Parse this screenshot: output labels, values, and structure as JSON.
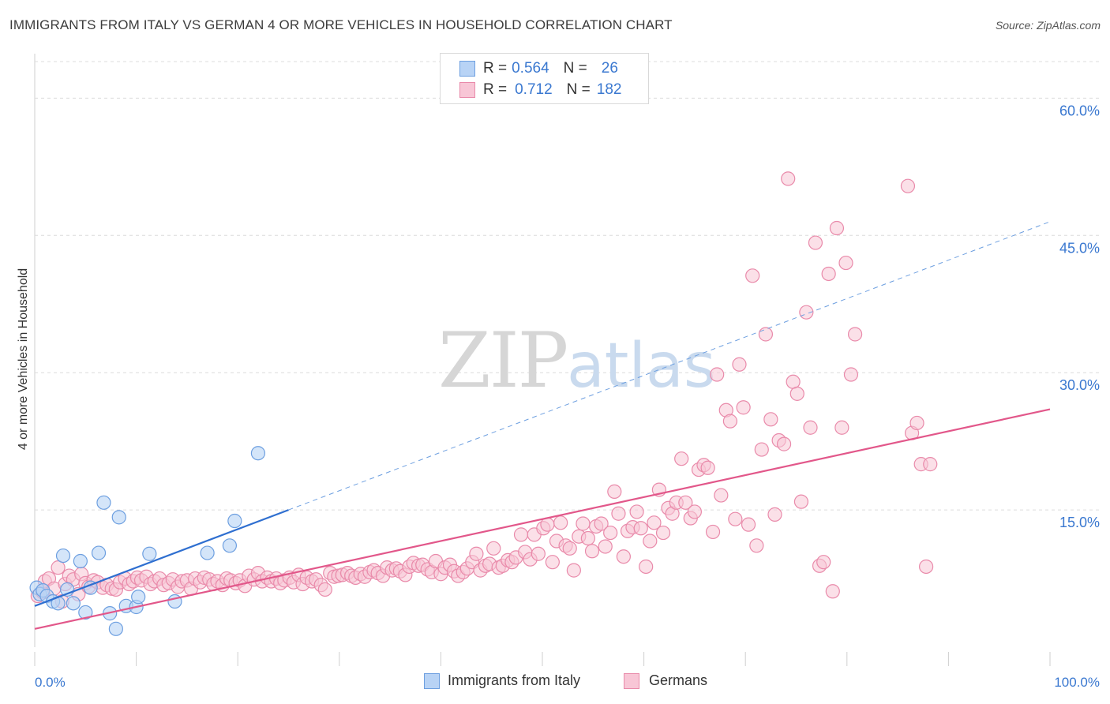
{
  "title": "IMMIGRANTS FROM ITALY VS GERMAN 4 OR MORE VEHICLES IN HOUSEHOLD CORRELATION CHART",
  "source": "Source: ZipAtlas.com",
  "watermark": {
    "zip": "ZIP",
    "atlas": "atlas"
  },
  "colors": {
    "blue_fill": "#b8d3f5",
    "blue_stroke": "#6d9fe0",
    "blue_line": "#2f6fd0",
    "pink_fill": "#f8c6d6",
    "pink_stroke": "#e98aaa",
    "pink_line": "#e2578a",
    "value_text": "#3a78d0",
    "grid": "#dcdcdc"
  },
  "legend": {
    "rows": [
      {
        "r_label": "R =",
        "r_value": "0.564",
        "n_label": "N =",
        "n_value": "26"
      },
      {
        "r_label": "R =",
        "r_value": "0.712",
        "n_label": "N =",
        "n_value": "182"
      }
    ]
  },
  "bottom_legend": [
    "Immigrants from Italy",
    "Germans"
  ],
  "chart_data": {
    "type": "scatter",
    "title": "IMMIGRANTS FROM ITALY VS GERMAN 4 OR MORE VEHICLES IN HOUSEHOLD CORRELATION CHART",
    "xlabel": "",
    "ylabel": "4 or more Vehicles in Household",
    "xlim": [
      0,
      100
    ],
    "ylim": [
      0,
      64
    ],
    "x_tick_labels": [
      "0.0%",
      "100.0%"
    ],
    "y_ticks": [
      15,
      30,
      45,
      60
    ],
    "y_tick_labels": [
      "15.0%",
      "30.0%",
      "45.0%",
      "60.0%"
    ],
    "grid": true,
    "legend_position": "top-center",
    "series": [
      {
        "name": "Immigrants from Italy",
        "stats": {
          "R": 0.564,
          "N": 26
        },
        "trendline": {
          "x0": 0,
          "y0": 4.5,
          "x1": 25,
          "y1": 15,
          "dashed_to": {
            "x": 100,
            "y": 46.5
          }
        },
        "points": [
          [
            0.2,
            6.5
          ],
          [
            0.5,
            5.8
          ],
          [
            0.8,
            6.2
          ],
          [
            1.2,
            5.6
          ],
          [
            1.8,
            5.0
          ],
          [
            2.3,
            4.8
          ],
          [
            2.8,
            10.0
          ],
          [
            3.2,
            6.3
          ],
          [
            3.8,
            4.8
          ],
          [
            4.5,
            9.4
          ],
          [
            5.0,
            3.8
          ],
          [
            5.5,
            6.5
          ],
          [
            6.3,
            10.3
          ],
          [
            6.8,
            15.8
          ],
          [
            7.4,
            3.7
          ],
          [
            8.0,
            2.0
          ],
          [
            8.3,
            14.2
          ],
          [
            9.0,
            4.5
          ],
          [
            10.0,
            4.4
          ],
          [
            10.2,
            5.5
          ],
          [
            11.3,
            10.2
          ],
          [
            13.8,
            5.0
          ],
          [
            17.0,
            10.3
          ],
          [
            19.2,
            11.1
          ],
          [
            19.7,
            13.8
          ],
          [
            22.0,
            21.2
          ]
        ]
      },
      {
        "name": "Germans",
        "stats": {
          "R": 0.712,
          "N": 182
        },
        "trendline": {
          "x0": 0,
          "y0": 2.0,
          "x1": 100,
          "y1": 26.0
        },
        "points": [
          [
            0.3,
            5.6
          ],
          [
            0.8,
            6.0
          ],
          [
            1.0,
            7.2
          ],
          [
            1.4,
            7.5
          ],
          [
            1.9,
            6.4
          ],
          [
            2.3,
            8.7
          ],
          [
            2.7,
            5.0
          ],
          [
            3.0,
            6.9
          ],
          [
            3.4,
            7.8
          ],
          [
            3.8,
            7.4
          ],
          [
            4.3,
            5.8
          ],
          [
            4.6,
            8.0
          ],
          [
            5.0,
            7.0
          ],
          [
            5.3,
            6.6
          ],
          [
            5.8,
            7.3
          ],
          [
            6.2,
            7.1
          ],
          [
            6.7,
            6.5
          ],
          [
            7.1,
            6.8
          ],
          [
            7.6,
            6.4
          ],
          [
            8.0,
            6.3
          ],
          [
            8.4,
            7.1
          ],
          [
            8.9,
            7.5
          ],
          [
            9.3,
            6.9
          ],
          [
            9.7,
            7.2
          ],
          [
            10.1,
            7.6
          ],
          [
            10.5,
            7.3
          ],
          [
            11.0,
            7.7
          ],
          [
            11.4,
            6.9
          ],
          [
            11.8,
            7.2
          ],
          [
            12.3,
            7.5
          ],
          [
            12.7,
            6.8
          ],
          [
            13.2,
            7.0
          ],
          [
            13.6,
            7.4
          ],
          [
            14.1,
            6.6
          ],
          [
            14.5,
            7.2
          ],
          [
            15.0,
            7.3
          ],
          [
            15.4,
            6.4
          ],
          [
            15.8,
            7.5
          ],
          [
            16.3,
            7.1
          ],
          [
            16.7,
            7.6
          ],
          [
            17.2,
            7.4
          ],
          [
            17.6,
            6.9
          ],
          [
            18.0,
            7.2
          ],
          [
            18.5,
            6.8
          ],
          [
            18.9,
            7.5
          ],
          [
            19.3,
            7.3
          ],
          [
            19.8,
            7.0
          ],
          [
            20.2,
            7.3
          ],
          [
            20.7,
            6.7
          ],
          [
            21.1,
            7.8
          ],
          [
            21.6,
            7.4
          ],
          [
            22.0,
            8.1
          ],
          [
            22.4,
            7.2
          ],
          [
            22.9,
            7.6
          ],
          [
            23.3,
            7.2
          ],
          [
            23.8,
            7.5
          ],
          [
            24.2,
            7.0
          ],
          [
            24.6,
            7.3
          ],
          [
            25.1,
            7.6
          ],
          [
            25.5,
            7.1
          ],
          [
            26.0,
            7.9
          ],
          [
            26.4,
            6.9
          ],
          [
            26.8,
            7.6
          ],
          [
            27.3,
            7.2
          ],
          [
            27.7,
            7.4
          ],
          [
            28.2,
            6.8
          ],
          [
            28.6,
            6.3
          ],
          [
            29.1,
            8.1
          ],
          [
            29.5,
            7.7
          ],
          [
            29.9,
            7.8
          ],
          [
            30.3,
            7.9
          ],
          [
            30.8,
            8.1
          ],
          [
            31.2,
            7.8
          ],
          [
            31.6,
            7.6
          ],
          [
            32.1,
            8.0
          ],
          [
            32.5,
            7.7
          ],
          [
            33.0,
            8.2
          ],
          [
            33.4,
            8.4
          ],
          [
            33.8,
            8.1
          ],
          [
            34.3,
            7.8
          ],
          [
            34.7,
            8.7
          ],
          [
            35.2,
            8.4
          ],
          [
            35.6,
            8.6
          ],
          [
            36.0,
            8.3
          ],
          [
            36.5,
            7.9
          ],
          [
            36.9,
            8.8
          ],
          [
            37.3,
            9.2
          ],
          [
            37.8,
            8.9
          ],
          [
            38.2,
            9.0
          ],
          [
            38.7,
            8.5
          ],
          [
            39.1,
            8.2
          ],
          [
            39.5,
            9.4
          ],
          [
            40.0,
            8.0
          ],
          [
            40.4,
            8.7
          ],
          [
            40.9,
            9.0
          ],
          [
            41.3,
            8.3
          ],
          [
            41.7,
            7.8
          ],
          [
            42.2,
            8.2
          ],
          [
            42.6,
            8.6
          ],
          [
            43.1,
            9.3
          ],
          [
            43.5,
            10.2
          ],
          [
            43.9,
            8.4
          ],
          [
            44.4,
            8.9
          ],
          [
            44.8,
            9.1
          ],
          [
            45.2,
            10.8
          ],
          [
            45.7,
            8.7
          ],
          [
            46.1,
            8.9
          ],
          [
            46.6,
            9.5
          ],
          [
            47.0,
            9.3
          ],
          [
            47.4,
            9.8
          ],
          [
            47.9,
            12.3
          ],
          [
            48.3,
            10.4
          ],
          [
            48.8,
            9.6
          ],
          [
            49.2,
            12.3
          ],
          [
            49.6,
            10.2
          ],
          [
            50.1,
            13.0
          ],
          [
            50.5,
            13.4
          ],
          [
            51.0,
            9.3
          ],
          [
            51.4,
            11.6
          ],
          [
            51.8,
            13.6
          ],
          [
            52.3,
            11.1
          ],
          [
            52.7,
            10.8
          ],
          [
            53.1,
            8.4
          ],
          [
            53.6,
            12.1
          ],
          [
            54.0,
            13.5
          ],
          [
            54.5,
            11.9
          ],
          [
            54.9,
            10.5
          ],
          [
            55.3,
            13.2
          ],
          [
            55.8,
            13.5
          ],
          [
            56.2,
            11.0
          ],
          [
            56.7,
            12.5
          ],
          [
            57.1,
            17.0
          ],
          [
            57.5,
            14.6
          ],
          [
            58.0,
            9.9
          ],
          [
            58.4,
            12.7
          ],
          [
            58.9,
            13.1
          ],
          [
            59.3,
            14.8
          ],
          [
            59.7,
            13.0
          ],
          [
            60.2,
            8.8
          ],
          [
            60.6,
            11.6
          ],
          [
            61.0,
            13.6
          ],
          [
            61.5,
            17.2
          ],
          [
            61.9,
            12.5
          ],
          [
            62.4,
            15.2
          ],
          [
            62.8,
            14.6
          ],
          [
            63.2,
            15.8
          ],
          [
            63.7,
            20.6
          ],
          [
            64.1,
            15.8
          ],
          [
            64.6,
            14.1
          ],
          [
            65.0,
            14.8
          ],
          [
            65.4,
            19.4
          ],
          [
            65.9,
            19.9
          ],
          [
            66.3,
            19.6
          ],
          [
            66.8,
            12.6
          ],
          [
            67.2,
            29.8
          ],
          [
            67.6,
            16.6
          ],
          [
            68.1,
            25.9
          ],
          [
            68.5,
            24.7
          ],
          [
            69.0,
            14.0
          ],
          [
            69.4,
            30.9
          ],
          [
            69.8,
            26.2
          ],
          [
            70.3,
            13.4
          ],
          [
            70.7,
            40.6
          ],
          [
            71.1,
            11.1
          ],
          [
            71.6,
            21.6
          ],
          [
            72.0,
            34.2
          ],
          [
            72.5,
            24.9
          ],
          [
            72.9,
            14.5
          ],
          [
            73.3,
            22.6
          ],
          [
            73.8,
            22.2
          ],
          [
            74.2,
            51.2
          ],
          [
            74.7,
            29.0
          ],
          [
            75.1,
            27.7
          ],
          [
            75.5,
            15.9
          ],
          [
            76.0,
            36.6
          ],
          [
            76.4,
            24.0
          ],
          [
            76.9,
            44.2
          ],
          [
            77.3,
            8.9
          ],
          [
            77.7,
            9.3
          ],
          [
            78.2,
            40.8
          ],
          [
            78.6,
            6.1
          ],
          [
            79.0,
            45.8
          ],
          [
            79.5,
            24.0
          ],
          [
            79.9,
            42.0
          ],
          [
            80.4,
            29.8
          ],
          [
            80.8,
            34.2
          ],
          [
            86.0,
            50.4
          ],
          [
            86.4,
            23.4
          ],
          [
            86.9,
            24.5
          ],
          [
            87.3,
            20.0
          ],
          [
            87.8,
            8.8
          ],
          [
            88.2,
            20.0
          ]
        ]
      }
    ]
  }
}
